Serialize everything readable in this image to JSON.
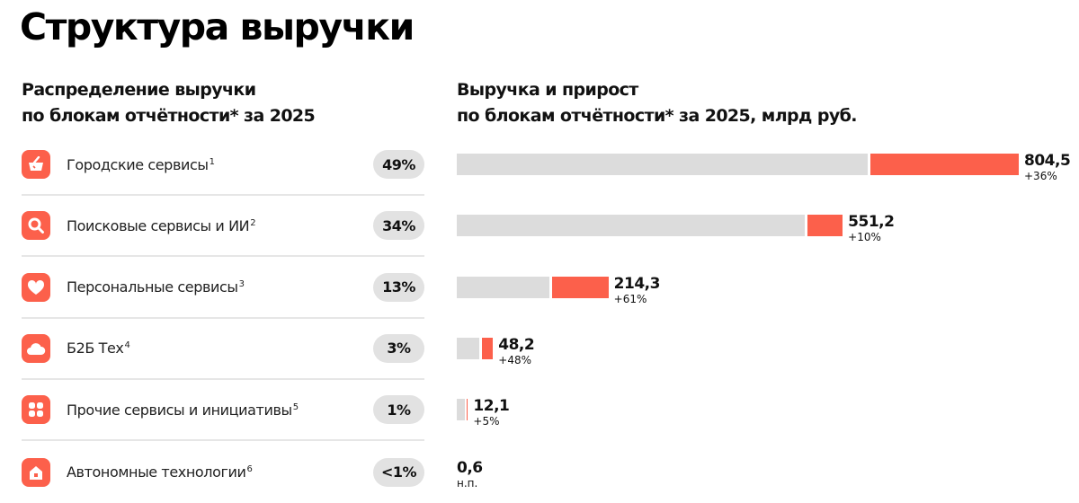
{
  "title": "Структура выручки",
  "left_heading": [
    "Распределение выручки",
    "по блокам отчётности* за 2025"
  ],
  "right_heading": [
    "Выручка и прирост",
    "по блокам отчётности* за 2025, млрд руб."
  ],
  "colors": {
    "accent": "#fc604b",
    "prior": "#dcdcdc",
    "pill": "#e2e2e2"
  },
  "segments": [
    {
      "label": "Городские сервисы",
      "note": "1",
      "share": "49%",
      "icon": "basket-icon"
    },
    {
      "label": "Поисковые сервисы и ИИ",
      "note": "2",
      "share": "34%",
      "icon": "search-icon"
    },
    {
      "label": "Персональные сервисы",
      "note": "3",
      "share": "13%",
      "icon": "heart-icon"
    },
    {
      "label": "Б2Б Тех",
      "note": "4",
      "share": "3%",
      "icon": "cloud-icon"
    },
    {
      "label": "Прочие сервисы и инициативы",
      "note": "5",
      "share": "1%",
      "icon": "grid-icon"
    },
    {
      "label": "Автономные технологии",
      "note": "6",
      "share": "<1%",
      "icon": "house-icon"
    }
  ],
  "chart_data": {
    "type": "bar",
    "orientation": "horizontal",
    "stacked": "prior-year + growth",
    "categories": [
      "Городские сервисы",
      "Поисковые сервисы и ИИ",
      "Персональные сервисы",
      "Б2Б Тех",
      "Прочие сервисы и инициативы",
      "Автономные технологии"
    ],
    "values": [
      804.5,
      551.2,
      214.3,
      48.2,
      12.1,
      0.6
    ],
    "value_labels": [
      "804,5",
      "551,2",
      "214,3",
      "48,2",
      "12,1",
      "0,6"
    ],
    "growth_pct": [
      36,
      10,
      61,
      48,
      5,
      null
    ],
    "growth_labels": [
      "+36%",
      "+10%",
      "+61%",
      "+48%",
      "+5%",
      "н.п."
    ],
    "unit": "млрд руб.",
    "grid": false
  }
}
